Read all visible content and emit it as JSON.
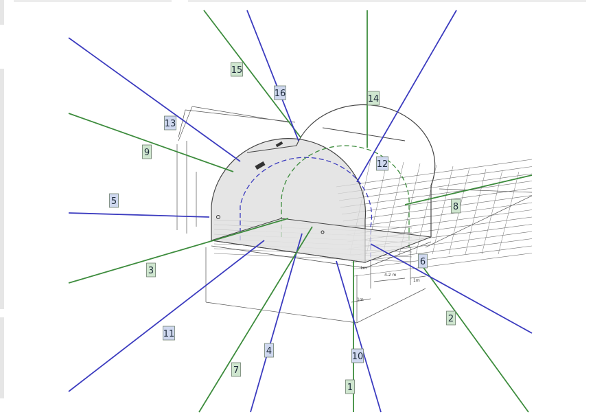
{
  "figure": {
    "colors": {
      "green": "#3d8c3d",
      "blue": "#3b3bbf",
      "green_tag": "#cfe6cf",
      "blue_tag": "#cfd8ef",
      "tag_border": "#6f7f6f",
      "drawing": "#555555",
      "grid": "#6f6f6f"
    },
    "callouts": [
      {
        "id": "c1",
        "label": "1",
        "color": "green"
      },
      {
        "id": "c2",
        "label": "2",
        "color": "green"
      },
      {
        "id": "c3",
        "label": "3",
        "color": "green"
      },
      {
        "id": "c4",
        "label": "4",
        "color": "blue"
      },
      {
        "id": "c5",
        "label": "5",
        "color": "blue"
      },
      {
        "id": "c6",
        "label": "6",
        "color": "blue"
      },
      {
        "id": "c7",
        "label": "7",
        "color": "green"
      },
      {
        "id": "c8",
        "label": "8",
        "color": "green"
      },
      {
        "id": "c9",
        "label": "9",
        "color": "green"
      },
      {
        "id": "c10",
        "label": "10",
        "color": "blue"
      },
      {
        "id": "c11",
        "label": "11",
        "color": "blue"
      },
      {
        "id": "c12",
        "label": "12",
        "color": "blue"
      },
      {
        "id": "c13",
        "label": "13",
        "color": "blue"
      },
      {
        "id": "c14",
        "label": "14",
        "color": "green"
      },
      {
        "id": "c15",
        "label": "15",
        "color": "green"
      },
      {
        "id": "c16",
        "label": "16",
        "color": "blue"
      }
    ],
    "dimensions": {
      "d1": "1m",
      "d2": "4.2 m",
      "d3": "1m",
      "d4": "1m"
    }
  }
}
